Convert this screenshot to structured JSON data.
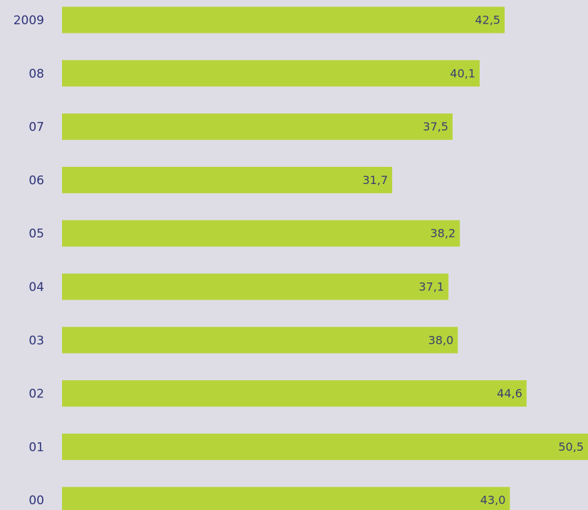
{
  "chart_data": {
    "type": "hbar",
    "categories": [
      "2009",
      "08",
      "07",
      "06",
      "05",
      "04",
      "03",
      "02",
      "01",
      "00"
    ],
    "values": [
      42.5,
      40.1,
      37.5,
      31.7,
      38.2,
      37.1,
      38.0,
      44.6,
      50.5,
      43.0
    ],
    "value_labels": [
      "42,5",
      "40,1",
      "37,5",
      "31,7",
      "38,2",
      "37,1",
      "38,0",
      "44,6",
      "50,5",
      "43,0"
    ],
    "color": "#b6d43a"
  }
}
